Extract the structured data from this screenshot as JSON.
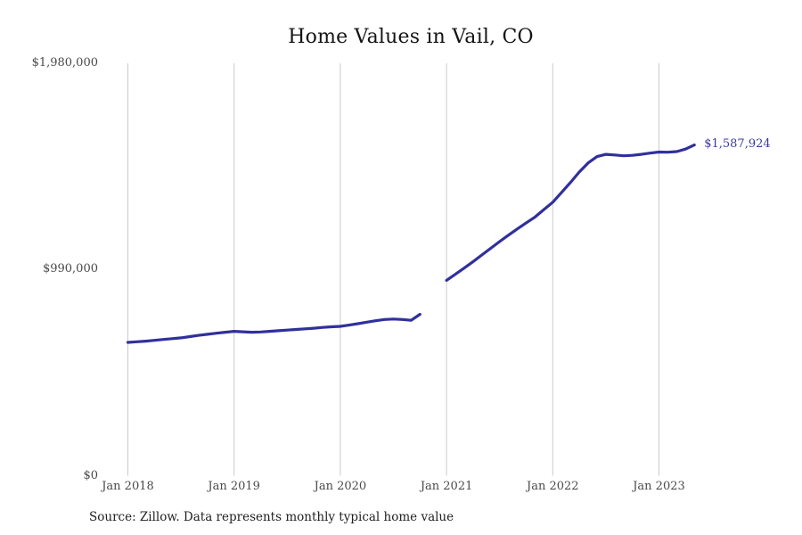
{
  "chart": {
    "title": "Home Values in Vail, CO",
    "source_note": "Source: Zillow. Data represents monthly typical home value",
    "end_label": "$1,587,924",
    "colors": {
      "line": "#30309C",
      "end_label": "#3A3A99",
      "grid": "#CBCBCB",
      "axis_text": "#4a4a4a",
      "title_text": "#141414",
      "source_text": "#1f1f1f",
      "background": "#FFFFFF"
    }
  },
  "chart_data": {
    "type": "line",
    "title": "Home Values in Vail, CO",
    "ylabel": "",
    "xlabel": "",
    "units": "USD",
    "ylim": [
      0,
      1980000
    ],
    "grid": "vertical-only",
    "legend": "none",
    "series_name": "Monthly typical home value",
    "x": [
      "2018-01",
      "2018-02",
      "2018-03",
      "2018-04",
      "2018-05",
      "2018-06",
      "2018-07",
      "2018-08",
      "2018-09",
      "2018-10",
      "2018-11",
      "2018-12",
      "2019-01",
      "2019-02",
      "2019-03",
      "2019-04",
      "2019-05",
      "2019-06",
      "2019-07",
      "2019-08",
      "2019-09",
      "2019-10",
      "2019-11",
      "2019-12",
      "2020-01",
      "2020-02",
      "2020-03",
      "2020-04",
      "2020-05",
      "2020-06",
      "2020-07",
      "2020-08",
      "2020-09",
      "2020-10",
      "2020-11",
      "2020-12",
      "2021-01",
      "2021-02",
      "2021-03",
      "2021-04",
      "2021-05",
      "2021-06",
      "2021-07",
      "2021-08",
      "2021-09",
      "2021-10",
      "2021-11",
      "2021-12",
      "2022-01",
      "2022-02",
      "2022-03",
      "2022-04",
      "2022-05",
      "2022-06",
      "2022-07",
      "2022-08",
      "2022-09",
      "2022-10",
      "2022-11",
      "2022-12",
      "2023-01",
      "2023-02",
      "2023-03",
      "2023-04",
      "2023-05"
    ],
    "values": [
      640000,
      643000,
      646000,
      650000,
      654000,
      658000,
      662000,
      668000,
      674000,
      679000,
      684000,
      689000,
      693000,
      691000,
      689000,
      690000,
      693000,
      696000,
      699000,
      702000,
      705000,
      708000,
      712000,
      715000,
      717000,
      723000,
      730000,
      737000,
      744000,
      750000,
      752000,
      750000,
      746000,
      775000,
      null,
      null,
      938000,
      967000,
      997000,
      1028000,
      1060000,
      1092000,
      1124000,
      1155000,
      1185000,
      1214000,
      1242000,
      1278000,
      1313000,
      1360000,
      1408000,
      1458000,
      1502000,
      1532000,
      1543000,
      1540000,
      1536000,
      1538000,
      1543000,
      1549000,
      1554000,
      1553000,
      1556000,
      1568000,
      1587924
    ],
    "gap_months": [
      "2020-11",
      "2020-12"
    ],
    "x_ticks": [
      {
        "label": "Jan 2018",
        "month_index": 0
      },
      {
        "label": "Jan 2019",
        "month_index": 12
      },
      {
        "label": "Jan 2020",
        "month_index": 24
      },
      {
        "label": "Jan 2021",
        "month_index": 36
      },
      {
        "label": "Jan 2022",
        "month_index": 48
      },
      {
        "label": "Jan 2023",
        "month_index": 60
      }
    ],
    "y_ticks": [
      {
        "label": "$0",
        "value": 0
      },
      {
        "label": "$990,000",
        "value": 990000
      },
      {
        "label": "$1,980,000",
        "value": 1980000
      }
    ],
    "annotations": [
      {
        "text": "$1,587,924",
        "x": "2023-05",
        "y": 1587924,
        "position": "right-of-line-end"
      }
    ]
  }
}
